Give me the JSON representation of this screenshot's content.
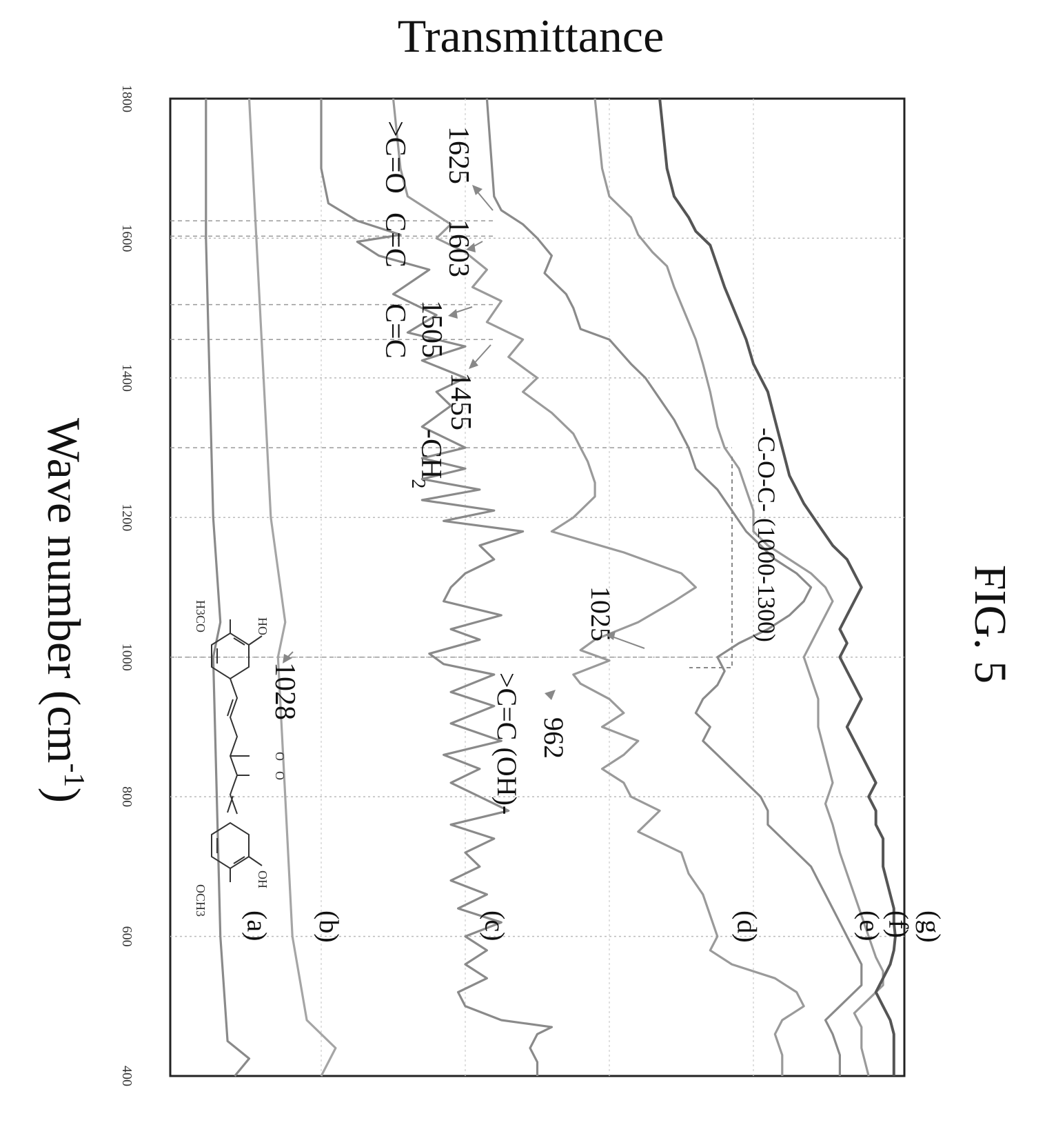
{
  "figure_label": "FIG. 5",
  "chart_data": {
    "type": "line",
    "title": "",
    "xlabel": "Wave number (cm",
    "xlabel_sup": "-1",
    "xlabel_close": ")",
    "ylabel": "Transmittance",
    "x_direction": "decreasing",
    "xlim": [
      1800,
      400
    ],
    "x_ticks": [
      "1800",
      "1600",
      "1400",
      "1200",
      "1000",
      "800",
      "600",
      "400"
    ],
    "ylim": [
      0,
      100
    ],
    "grid": true,
    "orientation": "rotated-90-clockwise",
    "vertical_gridlines_at": [
      1625,
      1603,
      1505,
      1455,
      1300,
      1000
    ],
    "series": [
      {
        "name": "(a)",
        "color": "#8a8a8a",
        "points": [
          [
            1800,
            96
          ],
          [
            1600,
            96
          ],
          [
            1400,
            95.5
          ],
          [
            1200,
            95
          ],
          [
            1050,
            94
          ],
          [
            1000,
            95
          ],
          [
            800,
            94.5
          ],
          [
            600,
            94
          ],
          [
            450,
            93
          ],
          [
            425,
            90
          ],
          [
            400,
            92
          ]
        ]
      },
      {
        "name": "(b)",
        "color": "#a5a5a5",
        "points": [
          [
            1800,
            90
          ],
          [
            1600,
            89
          ],
          [
            1400,
            88
          ],
          [
            1200,
            87
          ],
          [
            1050,
            85
          ],
          [
            1000,
            86
          ],
          [
            800,
            85
          ],
          [
            600,
            84
          ],
          [
            480,
            82
          ],
          [
            440,
            78
          ],
          [
            400,
            80
          ]
        ]
      },
      {
        "name": "(c)",
        "color": "#8a8a8a",
        "points": [
          [
            1800,
            80
          ],
          [
            1700,
            80
          ],
          [
            1650,
            79
          ],
          [
            1625,
            75
          ],
          [
            1605,
            69
          ],
          [
            1595,
            75
          ],
          [
            1575,
            72
          ],
          [
            1555,
            65
          ],
          [
            1520,
            70
          ],
          [
            1490,
            64
          ],
          [
            1465,
            68
          ],
          [
            1445,
            60
          ],
          [
            1425,
            66
          ],
          [
            1400,
            60
          ],
          [
            1380,
            64
          ],
          [
            1360,
            62
          ],
          [
            1330,
            66
          ],
          [
            1300,
            60
          ],
          [
            1285,
            66
          ],
          [
            1270,
            60
          ],
          [
            1255,
            66
          ],
          [
            1240,
            58
          ],
          [
            1225,
            66
          ],
          [
            1210,
            56
          ],
          [
            1195,
            63
          ],
          [
            1180,
            52
          ],
          [
            1160,
            58
          ],
          [
            1140,
            56
          ],
          [
            1120,
            60
          ],
          [
            1100,
            62
          ],
          [
            1080,
            63
          ],
          [
            1060,
            55
          ],
          [
            1040,
            62
          ],
          [
            1025,
            58
          ],
          [
            1005,
            65
          ],
          [
            990,
            63
          ],
          [
            975,
            56
          ],
          [
            950,
            62
          ],
          [
            930,
            56
          ],
          [
            905,
            62
          ],
          [
            880,
            55
          ],
          [
            860,
            63
          ],
          [
            840,
            58
          ],
          [
            820,
            62
          ],
          [
            800,
            58
          ],
          [
            780,
            54
          ],
          [
            760,
            62
          ],
          [
            740,
            56
          ],
          [
            720,
            60
          ],
          [
            700,
            58
          ],
          [
            680,
            62
          ],
          [
            660,
            57
          ],
          [
            640,
            61
          ],
          [
            620,
            55
          ],
          [
            600,
            60
          ],
          [
            580,
            57
          ],
          [
            560,
            60
          ],
          [
            540,
            57
          ],
          [
            520,
            61
          ],
          [
            500,
            60
          ],
          [
            480,
            55
          ],
          [
            470,
            48
          ],
          [
            460,
            50
          ],
          [
            440,
            51
          ],
          [
            420,
            50
          ],
          [
            400,
            50
          ]
        ]
      },
      {
        "name": "(d)",
        "color": "#9a9a9a",
        "points": [
          [
            1800,
            70
          ],
          [
            1700,
            69
          ],
          [
            1660,
            68
          ],
          [
            1640,
            65
          ],
          [
            1620,
            62
          ],
          [
            1600,
            64
          ],
          [
            1580,
            60
          ],
          [
            1555,
            57
          ],
          [
            1530,
            59
          ],
          [
            1510,
            55
          ],
          [
            1480,
            57
          ],
          [
            1455,
            52
          ],
          [
            1430,
            54
          ],
          [
            1400,
            50
          ],
          [
            1380,
            52
          ],
          [
            1350,
            48
          ],
          [
            1320,
            45
          ],
          [
            1300,
            44
          ],
          [
            1280,
            43
          ],
          [
            1250,
            42
          ],
          [
            1230,
            42
          ],
          [
            1200,
            45
          ],
          [
            1180,
            48
          ],
          [
            1150,
            38
          ],
          [
            1120,
            30
          ],
          [
            1100,
            28
          ],
          [
            1080,
            31
          ],
          [
            1050,
            36
          ],
          [
            1025,
            42
          ],
          [
            1010,
            44
          ],
          [
            995,
            40
          ],
          [
            975,
            45
          ],
          [
            962,
            44
          ],
          [
            940,
            40
          ],
          [
            920,
            38
          ],
          [
            900,
            41
          ],
          [
            880,
            36
          ],
          [
            860,
            38
          ],
          [
            840,
            41
          ],
          [
            820,
            38
          ],
          [
            800,
            37
          ],
          [
            780,
            33
          ],
          [
            750,
            36
          ],
          [
            720,
            30
          ],
          [
            690,
            29
          ],
          [
            660,
            27
          ],
          [
            630,
            26
          ],
          [
            600,
            25
          ],
          [
            580,
            26
          ],
          [
            560,
            23
          ],
          [
            540,
            17
          ],
          [
            520,
            14
          ],
          [
            500,
            13
          ],
          [
            480,
            16
          ],
          [
            460,
            17
          ],
          [
            430,
            16
          ],
          [
            400,
            16
          ]
        ]
      },
      {
        "name": "(e)",
        "color": "#8a8a8a",
        "points": [
          [
            1800,
            57
          ],
          [
            1660,
            56
          ],
          [
            1640,
            55
          ],
          [
            1620,
            52
          ],
          [
            1600,
            50
          ],
          [
            1575,
            48
          ],
          [
            1550,
            49
          ],
          [
            1520,
            46
          ],
          [
            1500,
            45
          ],
          [
            1470,
            44
          ],
          [
            1455,
            40
          ],
          [
            1420,
            37
          ],
          [
            1400,
            35
          ],
          [
            1370,
            33
          ],
          [
            1340,
            31
          ],
          [
            1300,
            29
          ],
          [
            1270,
            28
          ],
          [
            1240,
            25
          ],
          [
            1210,
            23
          ],
          [
            1180,
            21
          ],
          [
            1160,
            19
          ],
          [
            1140,
            17
          ],
          [
            1120,
            14
          ],
          [
            1100,
            12
          ],
          [
            1080,
            13
          ],
          [
            1060,
            15
          ],
          [
            1040,
            18
          ],
          [
            1020,
            22
          ],
          [
            1000,
            25
          ],
          [
            980,
            24
          ],
          [
            960,
            25
          ],
          [
            940,
            27
          ],
          [
            920,
            28
          ],
          [
            900,
            26
          ],
          [
            880,
            27
          ],
          [
            860,
            25
          ],
          [
            840,
            23
          ],
          [
            820,
            21
          ],
          [
            800,
            19
          ],
          [
            780,
            18
          ],
          [
            760,
            18
          ],
          [
            740,
            16
          ],
          [
            720,
            14
          ],
          [
            700,
            12
          ],
          [
            680,
            11
          ],
          [
            660,
            10
          ],
          [
            640,
            9
          ],
          [
            620,
            8
          ],
          [
            600,
            7
          ],
          [
            560,
            5
          ],
          [
            530,
            5
          ],
          [
            500,
            8
          ],
          [
            480,
            10
          ],
          [
            460,
            9
          ],
          [
            430,
            8
          ],
          [
            400,
            8
          ]
        ]
      },
      {
        "name": "(f)",
        "color": "#9a9a9a",
        "points": [
          [
            1800,
            42
          ],
          [
            1700,
            41
          ],
          [
            1660,
            40
          ],
          [
            1630,
            37
          ],
          [
            1605,
            36
          ],
          [
            1580,
            34
          ],
          [
            1560,
            32
          ],
          [
            1530,
            31
          ],
          [
            1505,
            30
          ],
          [
            1480,
            29
          ],
          [
            1455,
            28
          ],
          [
            1420,
            27
          ],
          [
            1380,
            26
          ],
          [
            1330,
            25
          ],
          [
            1300,
            24
          ],
          [
            1270,
            22
          ],
          [
            1240,
            21
          ],
          [
            1210,
            20
          ],
          [
            1180,
            20
          ],
          [
            1160,
            18
          ],
          [
            1140,
            15
          ],
          [
            1120,
            12
          ],
          [
            1100,
            10
          ],
          [
            1080,
            9
          ],
          [
            1060,
            10
          ],
          [
            1040,
            11
          ],
          [
            1020,
            12
          ],
          [
            1000,
            13
          ],
          [
            970,
            12
          ],
          [
            940,
            11
          ],
          [
            900,
            11
          ],
          [
            860,
            10
          ],
          [
            820,
            9
          ],
          [
            790,
            10
          ],
          [
            760,
            9
          ],
          [
            720,
            8
          ],
          [
            690,
            7
          ],
          [
            660,
            6
          ],
          [
            630,
            5
          ],
          [
            600,
            4
          ],
          [
            570,
            3
          ],
          [
            550,
            2
          ],
          [
            530,
            2
          ],
          [
            510,
            4
          ],
          [
            490,
            6
          ],
          [
            470,
            5
          ],
          [
            440,
            5
          ],
          [
            400,
            4
          ]
        ]
      },
      {
        "name": "(g)",
        "color": "#555555",
        "points": [
          [
            1800,
            33
          ],
          [
            1700,
            32
          ],
          [
            1660,
            31
          ],
          [
            1630,
            29
          ],
          [
            1610,
            28
          ],
          [
            1590,
            26
          ],
          [
            1560,
            25
          ],
          [
            1530,
            24
          ],
          [
            1505,
            23
          ],
          [
            1480,
            22
          ],
          [
            1455,
            21
          ],
          [
            1420,
            20
          ],
          [
            1380,
            18
          ],
          [
            1340,
            17
          ],
          [
            1300,
            16
          ],
          [
            1260,
            15
          ],
          [
            1220,
            13
          ],
          [
            1190,
            11
          ],
          [
            1160,
            9
          ],
          [
            1140,
            7
          ],
          [
            1120,
            6
          ],
          [
            1100,
            5
          ],
          [
            1080,
            6
          ],
          [
            1060,
            7
          ],
          [
            1040,
            8
          ],
          [
            1020,
            7
          ],
          [
            1000,
            8
          ],
          [
            980,
            7
          ],
          [
            960,
            6
          ],
          [
            940,
            5
          ],
          [
            920,
            6
          ],
          [
            900,
            7
          ],
          [
            880,
            6
          ],
          [
            860,
            5
          ],
          [
            840,
            4
          ],
          [
            820,
            3
          ],
          [
            800,
            4
          ],
          [
            780,
            3
          ],
          [
            760,
            3
          ],
          [
            740,
            2
          ],
          [
            720,
            2
          ],
          [
            700,
            2
          ],
          [
            680,
            1.5
          ],
          [
            660,
            1
          ],
          [
            640,
            0.5
          ],
          [
            620,
            0.5
          ],
          [
            600,
            0.3
          ],
          [
            580,
            0.5
          ],
          [
            560,
            1
          ],
          [
            540,
            2
          ],
          [
            520,
            3
          ],
          [
            500,
            2
          ],
          [
            480,
            1
          ],
          [
            460,
            0.5
          ],
          [
            440,
            0.5
          ],
          [
            420,
            0.5
          ],
          [
            400,
            0.5
          ]
        ]
      }
    ],
    "annotations": {
      "coc": "-C-O-C-  (1000-1300)",
      "p1025": "1025",
      "p962": "962",
      "ccoh": ">C=C (OH)-",
      "p1625": "1625",
      "p1603": "1603",
      "p1505": "1505",
      "p1455": "1455",
      "ch2": "-CH",
      "ch2_sub": "2",
      "co": ">C=O",
      "cc1": "C=C",
      "cc2": "C=C",
      "p1028": "1028"
    },
    "structure_labels": {
      "ho": "HO",
      "h3co": "H3CO",
      "oh": "OH",
      "och3": "OCH3",
      "o1": "O",
      "o2": "O"
    }
  }
}
